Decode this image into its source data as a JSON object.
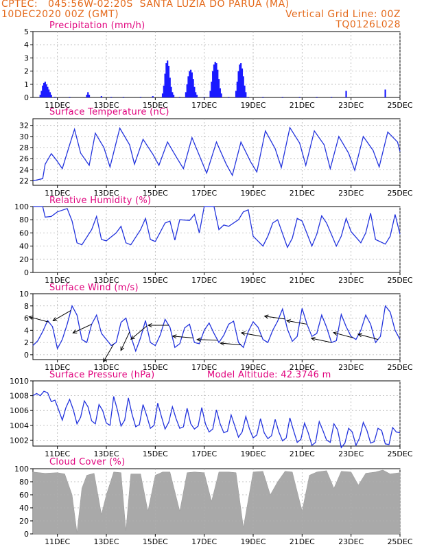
{
  "header": {
    "line1": "CPTEC:   045:56W-02:20S  SANTA LUZIA DO PARUA (MA)",
    "line2": "10DEC2020 00Z (GMT)",
    "grid_note": "Vertical Grid Line: 00Z",
    "code": "TQ0126L028"
  },
  "colors": {
    "header": "#e46a1c",
    "title": "#e0007c",
    "line": "#2233dd",
    "bar": "#1a1aff",
    "cloud": "#a9a9a9",
    "grid": "#b0b0b0"
  },
  "x_ticks": [
    "11DEC",
    "13DEC",
    "15DEC",
    "17DEC",
    "19DEC",
    "21DEC",
    "23DEC",
    "25DEC"
  ],
  "chart_data": [
    {
      "type": "bar",
      "title": "Precipitation (mm/h)",
      "ylim": [
        0,
        5
      ],
      "yticks": [
        "0",
        "1",
        "2",
        "3",
        "4",
        "5"
      ],
      "time_axis": "days since 10DEC2020 00Z",
      "x": [
        0.3,
        0.35,
        0.4,
        0.45,
        0.5,
        0.55,
        0.6,
        0.65,
        0.7,
        0.75,
        2.2,
        2.25,
        2.3,
        5.3,
        5.35,
        5.4,
        5.45,
        5.5,
        5.55,
        5.6,
        5.65,
        5.7,
        5.75,
        6.25,
        6.3,
        6.35,
        6.4,
        6.45,
        6.5,
        6.55,
        6.6,
        6.65,
        6.7,
        7.25,
        7.3,
        7.35,
        7.4,
        7.45,
        7.5,
        7.55,
        7.6,
        7.65,
        7.7,
        8.3,
        8.35,
        8.4,
        8.45,
        8.5,
        8.55,
        8.6,
        8.65,
        8.7,
        0.9,
        1.5,
        2.8,
        3.2,
        3.7,
        4.4,
        4.9,
        6.0,
        7.0,
        8.0,
        8.8,
        9.4,
        10.2,
        10.9,
        11.6,
        12.2,
        12.8,
        14.4
      ],
      "values": [
        0.2,
        0.5,
        0.9,
        1.1,
        1.2,
        1.0,
        0.8,
        0.6,
        0.4,
        0.2,
        0.2,
        0.4,
        0.2,
        0.3,
        0.9,
        1.8,
        2.6,
        2.8,
        2.4,
        1.5,
        0.8,
        0.4,
        0.2,
        0.4,
        1.0,
        1.6,
        2.0,
        2.1,
        1.9,
        1.4,
        0.8,
        0.4,
        0.2,
        0.5,
        1.2,
        2.0,
        2.5,
        2.7,
        2.6,
        2.1,
        1.4,
        0.7,
        0.3,
        0.5,
        1.2,
        2.0,
        2.5,
        2.6,
        2.2,
        1.6,
        0.9,
        0.4,
        0.05,
        0.05,
        0.1,
        0.05,
        0.05,
        0.05,
        0.1,
        0.05,
        0.05,
        0.05,
        0.05,
        0.05,
        0.05,
        0.05,
        0.05,
        0.05,
        0.5,
        0.6
      ]
    },
    {
      "type": "line",
      "title": "Surface Temperature (nC)",
      "ylim": [
        21.2,
        33.2
      ],
      "yticks": [
        "22",
        "24",
        "26",
        "28",
        "30",
        "32"
      ],
      "time_axis": "days since 10DEC2020 00Z",
      "x": [
        0,
        0.4,
        0.5,
        0.75,
        0.95,
        1.2,
        1.5,
        1.7,
        1.95,
        2.3,
        2.55,
        2.9,
        3.15,
        3.55,
        3.95,
        4.15,
        4.5,
        4.9,
        5.15,
        5.5,
        5.9,
        6.15,
        6.5,
        6.9,
        7.1,
        7.5,
        7.9,
        8.15,
        8.5,
        8.9,
        9.15,
        9.5,
        9.9,
        10.15,
        10.5,
        10.9,
        11.15,
        11.5,
        11.9,
        12.15,
        12.5,
        12.9,
        13.15,
        13.5,
        13.9,
        14.15,
        14.5,
        14.9,
        15.0
      ],
      "values": [
        22.0,
        22.4,
        25.0,
        26.9,
        25.8,
        24.2,
        28.5,
        31.3,
        27.0,
        24.8,
        30.6,
        28.0,
        24.5,
        31.5,
        28.5,
        25.0,
        29.5,
        26.8,
        24.8,
        29.0,
        26.0,
        24.2,
        29.8,
        25.5,
        23.4,
        29.0,
        25.0,
        23.0,
        29.0,
        25.4,
        23.6,
        31.0,
        27.8,
        24.4,
        31.6,
        28.8,
        24.8,
        31.0,
        28.5,
        24.2,
        30.0,
        27.0,
        23.9,
        30.0,
        27.5,
        24.5,
        30.8,
        29.0,
        27.3
      ]
    },
    {
      "type": "line",
      "title": "Relative Humidity (%)",
      "ylim": [
        0,
        100
      ],
      "yticks": [
        "0",
        "20",
        "40",
        "60",
        "80",
        "100"
      ],
      "time_axis": "days since 10DEC2020 00Z",
      "x": [
        0,
        0.4,
        0.5,
        0.75,
        1.0,
        1.4,
        1.6,
        1.8,
        2.0,
        2.4,
        2.6,
        2.8,
        3.0,
        3.4,
        3.6,
        3.8,
        4.0,
        4.4,
        4.6,
        4.8,
        5.0,
        5.4,
        5.6,
        5.8,
        6.0,
        6.4,
        6.6,
        6.8,
        7.0,
        7.4,
        7.6,
        7.8,
        8.0,
        8.4,
        8.6,
        8.8,
        9.0,
        9.4,
        9.6,
        9.8,
        10.0,
        10.4,
        10.6,
        10.8,
        11.0,
        11.4,
        11.6,
        11.8,
        12.0,
        12.4,
        12.6,
        12.8,
        13.0,
        13.4,
        13.6,
        13.8,
        14.0,
        14.4,
        14.6,
        14.8,
        15.0
      ],
      "values": [
        100,
        100,
        84,
        85,
        92,
        97,
        78,
        45,
        42,
        65,
        85,
        50,
        48,
        60,
        70,
        45,
        42,
        65,
        82,
        50,
        47,
        75,
        78,
        49,
        80,
        79,
        88,
        60,
        100,
        100,
        65,
        72,
        70,
        80,
        92,
        95,
        55,
        40,
        55,
        75,
        80,
        38,
        52,
        82,
        78,
        40,
        58,
        86,
        75,
        40,
        55,
        82,
        62,
        45,
        60,
        90,
        50,
        43,
        55,
        88,
        58
      ]
    },
    {
      "type": "line",
      "title": "Surface Wind (m/s)",
      "ylim": [
        -0.8,
        10
      ],
      "yticks": [
        "0",
        "2",
        "4",
        "6",
        "8",
        "10"
      ],
      "time_axis": "days since 10DEC2020 00Z",
      "x": [
        0,
        0.2,
        0.4,
        0.6,
        0.8,
        1.0,
        1.2,
        1.4,
        1.6,
        1.8,
        2.0,
        2.2,
        2.4,
        2.6,
        2.8,
        3.0,
        3.2,
        3.4,
        3.6,
        3.8,
        4.0,
        4.2,
        4.4,
        4.6,
        4.8,
        5.0,
        5.2,
        5.4,
        5.6,
        5.8,
        6.0,
        6.2,
        6.4,
        6.6,
        6.8,
        7.0,
        7.2,
        7.4,
        7.6,
        7.8,
        8.0,
        8.2,
        8.4,
        8.6,
        8.8,
        9.0,
        9.2,
        9.4,
        9.6,
        9.8,
        10.0,
        10.2,
        10.4,
        10.6,
        10.8,
        11.0,
        11.2,
        11.4,
        11.6,
        11.8,
        12.0,
        12.2,
        12.4,
        12.6,
        12.8,
        13.0,
        13.2,
        13.4,
        13.6,
        13.8,
        14.0,
        14.2,
        14.4,
        14.6,
        14.8,
        15.0
      ],
      "values": [
        1.5,
        2.3,
        3.8,
        5.6,
        4.6,
        1.0,
        2.5,
        5.0,
        8.0,
        6.5,
        2.5,
        2.0,
        5.0,
        6.5,
        3.5,
        2.5,
        1.5,
        2.0,
        5.3,
        6.0,
        3.0,
        0.6,
        2.8,
        5.6,
        2.0,
        1.5,
        3.2,
        5.8,
        4.5,
        1.2,
        1.8,
        4.4,
        5.0,
        2.0,
        1.8,
        4.0,
        5.2,
        3.5,
        2.0,
        3.2,
        5.0,
        5.5,
        2.0,
        1.2,
        3.8,
        5.4,
        4.5,
        2.5,
        2.0,
        4.0,
        5.5,
        7.5,
        4.2,
        2.2,
        3.0,
        7.6,
        5.0,
        3.0,
        3.5,
        6.5,
        4.5,
        2.0,
        2.3,
        6.6,
        4.6,
        3.0,
        2.5,
        4.0,
        6.5,
        5.0,
        2.0,
        3.0,
        8.0,
        7.0,
        4.0,
        2.5
      ]
    },
    {
      "type": "line",
      "title": "Surface Pressure (hPa)",
      "subtitle": "Model Altitude: 42.3746 m",
      "ylim": [
        1001.2,
        1010
      ],
      "yticks": [
        "1002",
        "1004",
        "1006",
        "1008",
        "1010"
      ],
      "time_axis": "days since 10DEC2020 00Z",
      "x": [
        0,
        0.15,
        0.3,
        0.45,
        0.6,
        0.75,
        0.9,
        1.05,
        1.2,
        1.35,
        1.5,
        1.65,
        1.8,
        1.95,
        2.1,
        2.25,
        2.4,
        2.55,
        2.7,
        2.85,
        3.0,
        3.15,
        3.3,
        3.45,
        3.6,
        3.75,
        3.9,
        4.05,
        4.2,
        4.35,
        4.5,
        4.65,
        4.8,
        4.95,
        5.1,
        5.25,
        5.4,
        5.55,
        5.7,
        5.85,
        6.0,
        6.15,
        6.3,
        6.45,
        6.6,
        6.75,
        6.9,
        7.05,
        7.2,
        7.35,
        7.5,
        7.65,
        7.8,
        7.95,
        8.1,
        8.25,
        8.4,
        8.55,
        8.7,
        8.85,
        9.0,
        9.15,
        9.3,
        9.45,
        9.6,
        9.75,
        9.9,
        10.05,
        10.2,
        10.35,
        10.5,
        10.65,
        10.8,
        10.95,
        11.1,
        11.25,
        11.4,
        11.55,
        11.7,
        11.85,
        12.0,
        12.15,
        12.3,
        12.45,
        12.6,
        12.75,
        12.9,
        13.05,
        13.2,
        13.35,
        13.5,
        13.65,
        13.8,
        13.95,
        14.1,
        14.25,
        14.4,
        14.55,
        14.7,
        14.85,
        15.0
      ],
      "values": [
        1008.0,
        1008.3,
        1008.0,
        1008.6,
        1008.4,
        1007.2,
        1007.4,
        1006.1,
        1004.7,
        1006.4,
        1007.5,
        1006.1,
        1004.2,
        1005.1,
        1007.3,
        1006.5,
        1004.6,
        1004.2,
        1006.8,
        1006.0,
        1004.3,
        1004.0,
        1007.9,
        1006.1,
        1003.9,
        1004.7,
        1007.7,
        1005.5,
        1003.8,
        1004.1,
        1006.8,
        1005.3,
        1003.6,
        1004.0,
        1007.0,
        1005.2,
        1003.5,
        1004.4,
        1006.5,
        1004.9,
        1003.6,
        1003.8,
        1006.3,
        1004.2,
        1003.5,
        1003.9,
        1006.4,
        1004.2,
        1003.1,
        1003.5,
        1006.1,
        1004.2,
        1003.0,
        1003.2,
        1005.4,
        1003.9,
        1002.4,
        1003.1,
        1005.2,
        1003.5,
        1002.3,
        1002.7,
        1004.9,
        1003.0,
        1002.2,
        1002.6,
        1004.8,
        1003.1,
        1001.9,
        1002.3,
        1005.0,
        1003.3,
        1001.7,
        1002.1,
        1004.3,
        1003.0,
        1001.3,
        1001.7,
        1004.5,
        1003.3,
        1002.0,
        1001.7,
        1004.2,
        1003.4,
        1001.0,
        1001.6,
        1003.6,
        1003.1,
        1001.3,
        1002.3,
        1004.4,
        1003.3,
        1001.6,
        1001.8,
        1003.6,
        1003.3,
        1001.5,
        1001.4,
        1003.7,
        1003.1,
        1003.0
      ]
    },
    {
      "type": "area",
      "title": "Cloud Cover (%)",
      "ylim": [
        0,
        100
      ],
      "yticks": [
        "0",
        "20",
        "40",
        "60",
        "80",
        "100"
      ],
      "time_axis": "days since 10DEC2020 00Z",
      "x": [
        0,
        0.5,
        1.0,
        1.3,
        1.6,
        1.8,
        2.0,
        2.2,
        2.5,
        2.8,
        3.0,
        3.3,
        3.6,
        3.8,
        4.0,
        4.4,
        4.7,
        5.0,
        5.3,
        5.6,
        6.0,
        6.3,
        6.6,
        7.0,
        7.3,
        7.6,
        8.0,
        8.3,
        8.6,
        9.0,
        9.4,
        9.7,
        10.0,
        10.3,
        10.6,
        11.0,
        11.3,
        11.6,
        12.0,
        12.3,
        12.6,
        13.0,
        13.3,
        13.6,
        14.0,
        14.3,
        14.6,
        15.0
      ],
      "values": [
        95,
        93,
        94,
        92,
        60,
        2,
        70,
        90,
        93,
        30,
        60,
        95,
        94,
        5,
        92,
        92,
        35,
        90,
        95,
        95,
        35,
        94,
        95,
        94,
        50,
        95,
        95,
        94,
        10,
        95,
        96,
        60,
        80,
        96,
        95,
        35,
        90,
        95,
        97,
        70,
        96,
        95,
        75,
        93,
        95,
        98,
        92,
        94
      ]
    }
  ],
  "wind_vectors": {
    "note": "direction each arrow points, in degrees counter-clockwise from east; arrows drawn from each point's surface wind speed",
    "x": [
      0.65,
      1.55,
      2.4,
      3.3,
      3.95,
      4.65,
      5.55,
      6.55,
      7.55,
      8.5,
      9.35,
      10.3,
      11.2,
      12.2,
      13.1,
      14.1
    ],
    "dir_deg": [
      165,
      210,
      205,
      240,
      245,
      220,
      180,
      175,
      178,
      175,
      170,
      172,
      170,
      168,
      165,
      165
    ]
  }
}
